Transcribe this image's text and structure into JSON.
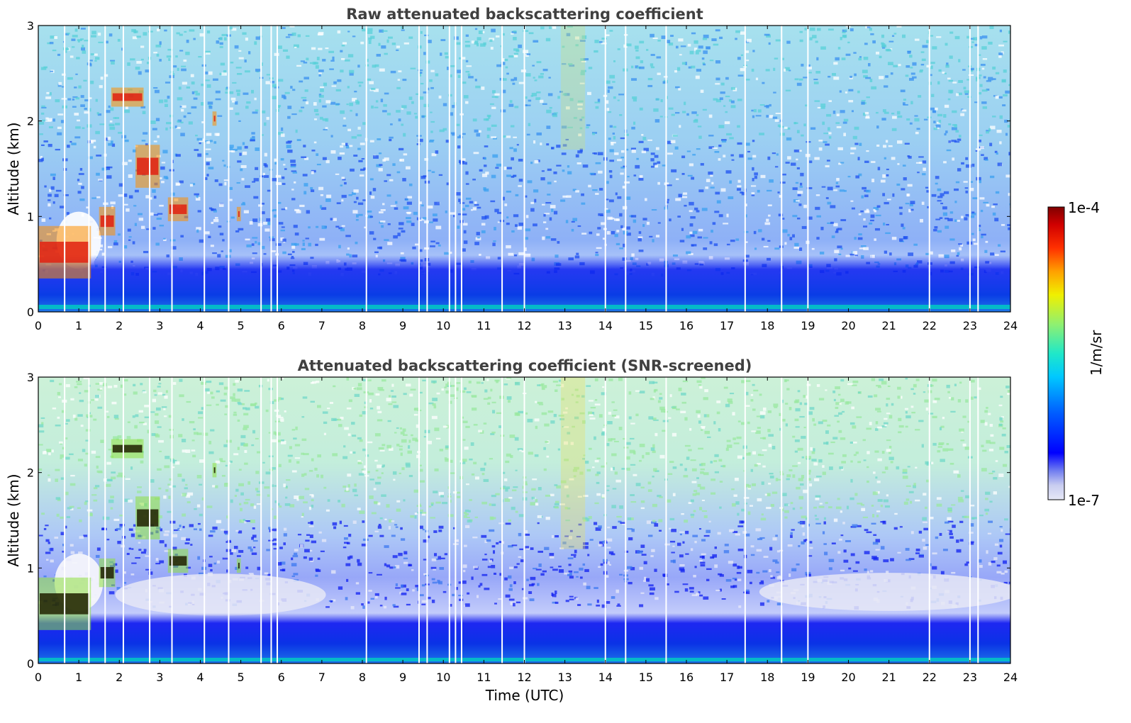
{
  "chart_data": [
    {
      "type": "heatmap",
      "title": "Raw attenuated backscattering coefficient",
      "xlabel": "",
      "ylabel": "Altitude (km)",
      "xlim": [
        0,
        24
      ],
      "ylim": [
        0,
        3
      ],
      "xticks": [
        0,
        1,
        2,
        3,
        4,
        5,
        6,
        7,
        8,
        9,
        10,
        11,
        12,
        13,
        14,
        15,
        16,
        17,
        18,
        19,
        20,
        21,
        22,
        23,
        24
      ],
      "yticks": [
        0,
        1,
        2,
        3
      ],
      "colormap": "jet",
      "color_range": [
        "1e-7",
        "1e-4"
      ],
      "features": {
        "boundary_layer_top_km": 0.4,
        "cloud_segments": [
          {
            "t": [
              0.0,
              1.3
            ],
            "alt_km": [
              0.35,
              0.9
            ]
          },
          {
            "t": [
              1.5,
              1.9
            ],
            "alt_km": [
              0.8,
              1.1
            ]
          },
          {
            "t": [
              1.8,
              2.6
            ],
            "alt_km": [
              2.15,
              2.35
            ]
          },
          {
            "t": [
              2.4,
              3.0
            ],
            "alt_km": [
              1.3,
              1.75
            ]
          },
          {
            "t": [
              3.2,
              3.7
            ],
            "alt_km": [
              0.95,
              1.2
            ]
          },
          {
            "t": [
              4.3,
              4.4
            ],
            "alt_km": [
              1.95,
              2.1
            ]
          },
          {
            "t": [
              4.9,
              5.0
            ],
            "alt_km": [
              0.95,
              1.1
            ]
          }
        ],
        "data_gaps_utc": [
          0.65,
          1.25,
          1.65,
          2.1,
          2.75,
          3.3,
          4.1,
          4.7,
          5.5,
          5.75,
          5.9,
          8.1,
          9.4,
          9.6,
          10.15,
          10.3,
          10.45,
          11.45,
          12.0,
          14.0,
          14.5,
          15.5,
          17.45,
          18.35,
          19.0,
          22.0,
          23.0,
          23.2
        ]
      }
    },
    {
      "type": "heatmap",
      "title": "Attenuated backscattering coefficient (SNR-screened)",
      "xlabel": "Time (UTC)",
      "ylabel": "Altitude (km)",
      "xlim": [
        0,
        24
      ],
      "ylim": [
        0,
        3
      ],
      "xticks": [
        0,
        1,
        2,
        3,
        4,
        5,
        6,
        7,
        8,
        9,
        10,
        11,
        12,
        13,
        14,
        15,
        16,
        17,
        18,
        19,
        20,
        21,
        22,
        23,
        24
      ],
      "yticks": [
        0,
        1,
        2,
        3
      ],
      "colormap": "jet",
      "color_range": [
        "1e-7",
        "1e-4"
      ],
      "features": {
        "boundary_layer_top_km": 0.6,
        "noise_floor_km": 1.5
      }
    }
  ],
  "colorbar": {
    "label": "1/m/sr",
    "max_label": "1e-4",
    "min_label": "1e-7"
  }
}
